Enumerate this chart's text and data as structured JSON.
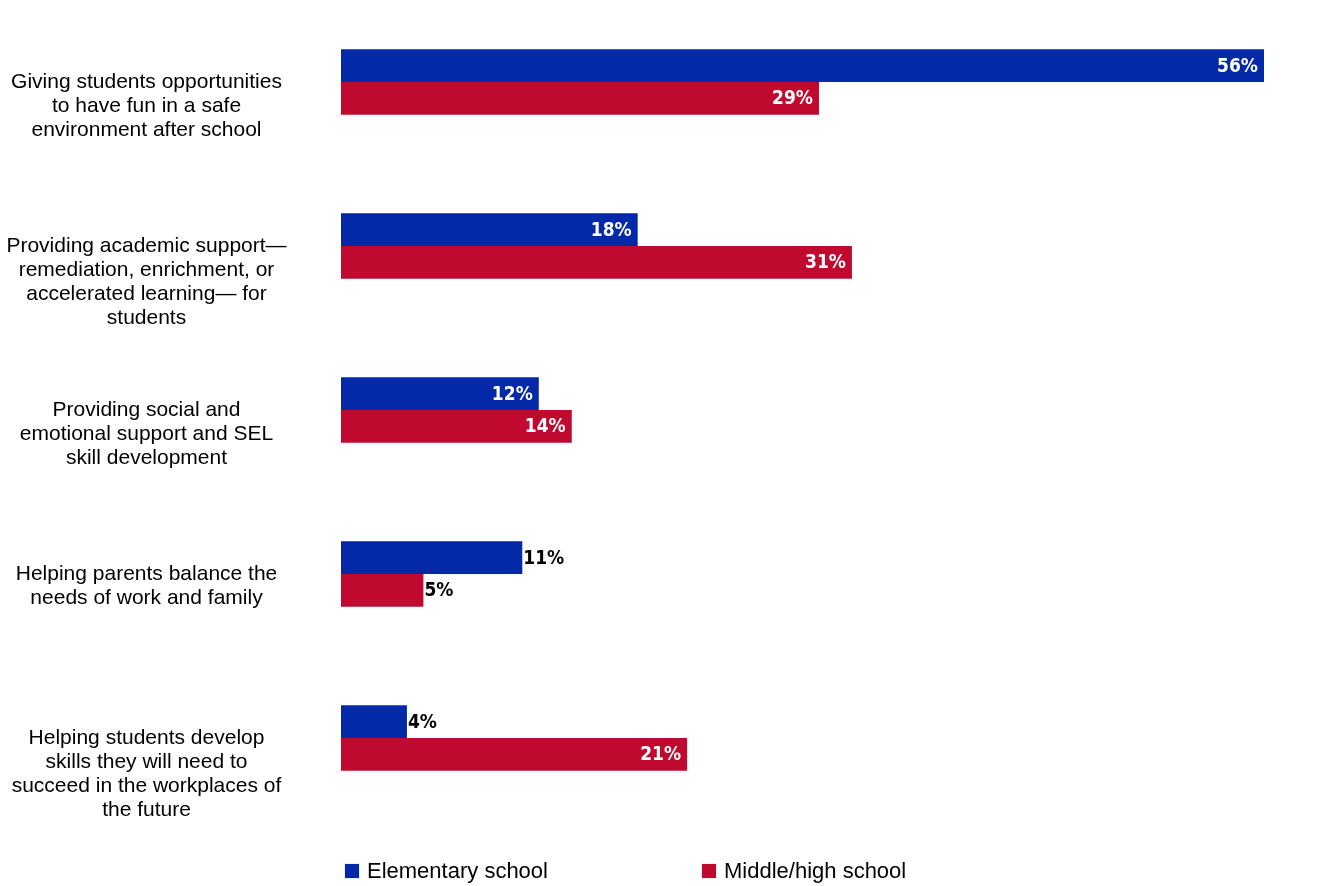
{
  "chart_data": {
    "type": "bar",
    "orientation": "horizontal",
    "categories": [
      "Giving students opportunities to have fun in a safe environment after school",
      "Providing academic support— remediation, enrichment, or accelerated learning— for students",
      "Providing social and emotional support and SEL skill development",
      "Helping parents balance the needs of work and family",
      "Helping students develop skills they will need to succeed in the workplaces of the future"
    ],
    "series": [
      {
        "name": "Elementary school",
        "color": "#0328a8",
        "values": [
          56,
          18,
          12,
          11,
          4
        ],
        "value_labels": [
          "56%",
          "18%",
          "12%",
          "11%",
          "4%"
        ]
      },
      {
        "name": "Middle/high school",
        "color": "#c0092f",
        "values": [
          29,
          31,
          14,
          5,
          21
        ],
        "value_labels": [
          "29%",
          "31%",
          "14%",
          "5%",
          "21%"
        ]
      }
    ],
    "legend": "bottom"
  }
}
